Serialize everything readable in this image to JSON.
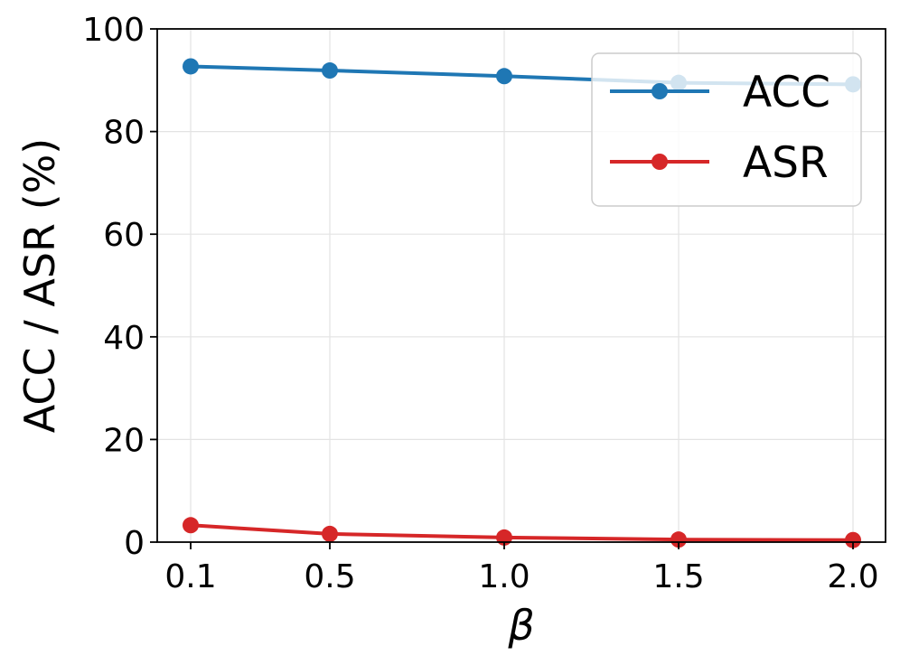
{
  "chart_data": {
    "type": "line",
    "categories": [
      "0.1",
      "0.5",
      "1.0",
      "1.5",
      "2.0"
    ],
    "xlabel": "β",
    "ylabel": "ACC / ASR (%)",
    "ylim": [
      0,
      100
    ],
    "yticks": [
      "0",
      "20",
      "40",
      "60",
      "80",
      "100"
    ],
    "grid": true,
    "legend_position": "top-right",
    "series": [
      {
        "name": "ACC",
        "color": "#1f77b4",
        "values": [
          92.7,
          91.9,
          90.8,
          89.5,
          89.2
        ]
      },
      {
        "name": "ASR",
        "color": "#d62728",
        "values": [
          3.3,
          1.6,
          0.9,
          0.5,
          0.4
        ]
      }
    ]
  }
}
